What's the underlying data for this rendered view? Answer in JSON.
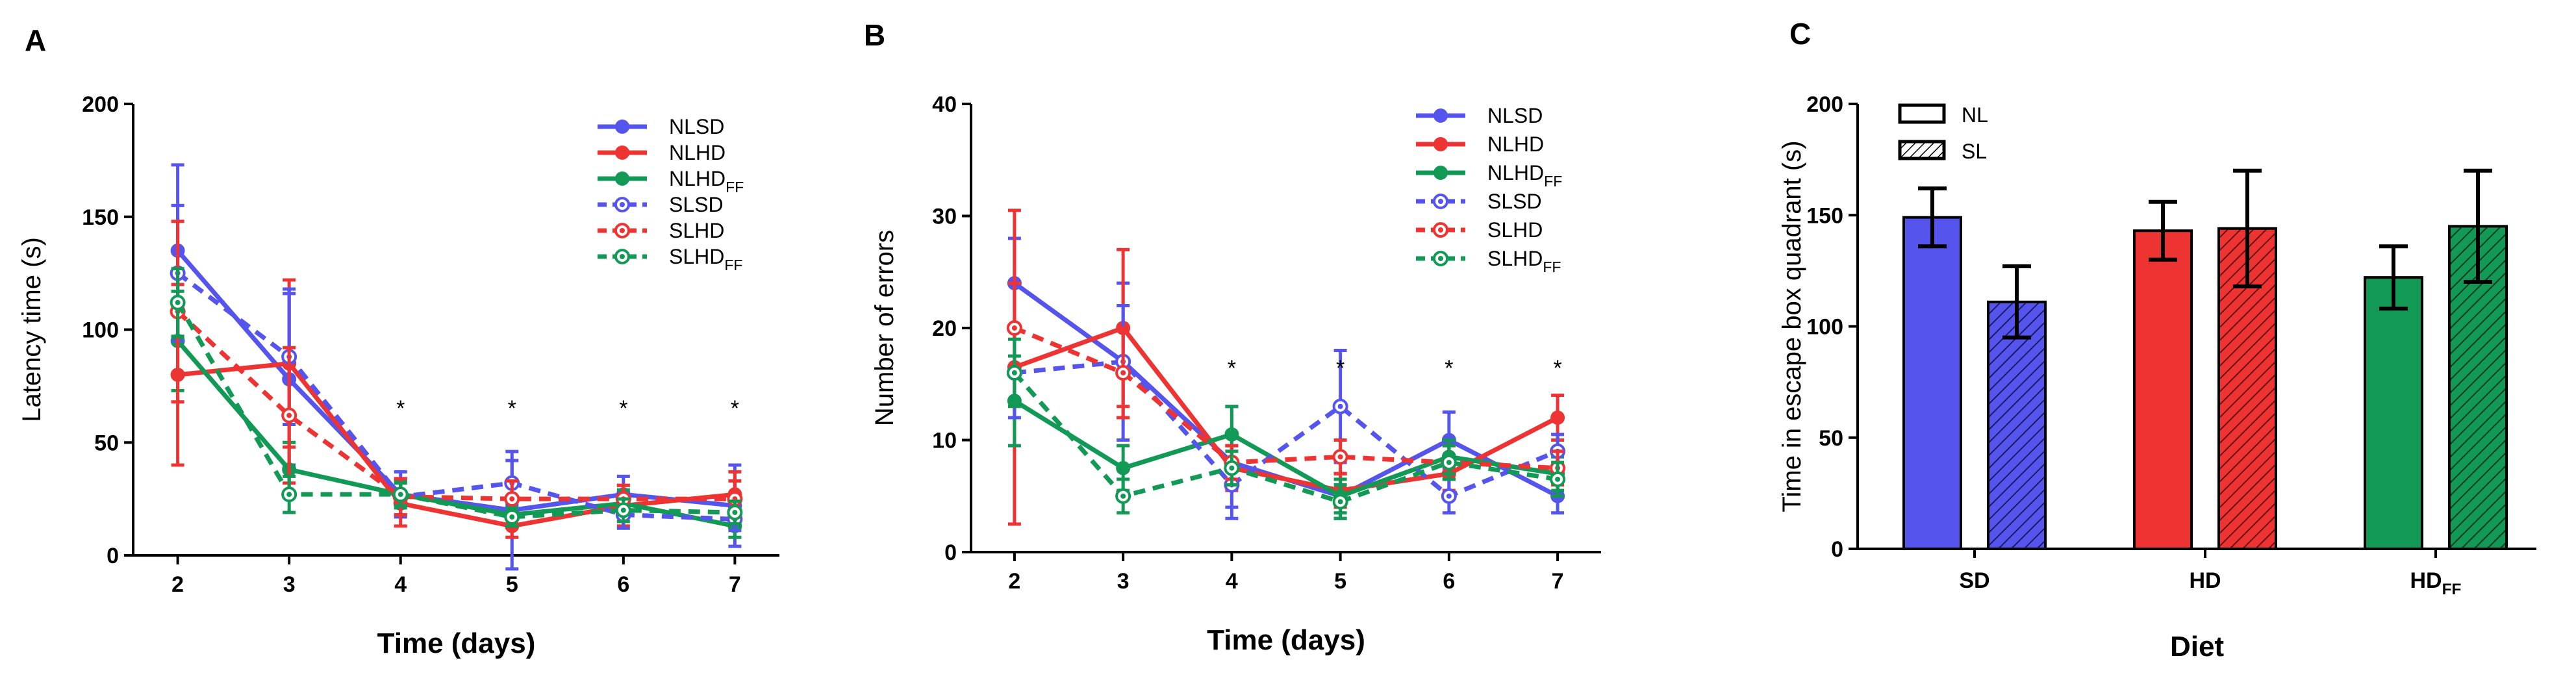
{
  "colors": {
    "blue": "#5555ee",
    "red": "#ee3333",
    "green": "#119955",
    "black": "#000000"
  },
  "chart_data": [
    {
      "panel": "A",
      "type": "line",
      "title": "",
      "xlabel": "Time (days)",
      "ylabel": "Latency time (s)",
      "x": [
        2,
        3,
        4,
        5,
        6,
        7
      ],
      "xlim": [
        1.6,
        7.4
      ],
      "ylim": [
        0,
        200
      ],
      "yticks": [
        0,
        50,
        100,
        150,
        200
      ],
      "legend_position": "top-right",
      "significance_x": [
        4,
        5,
        6,
        7
      ],
      "significance_mark": "*",
      "series": [
        {
          "name": "NLSD",
          "base": "NLSD",
          "sub": "",
          "color": "blue",
          "dashed": false,
          "values": [
            135,
            78,
            27,
            20,
            27,
            22
          ],
          "err": [
            38,
            38,
            10,
            26,
            8,
            18
          ]
        },
        {
          "name": "NLHD",
          "base": "NLHD",
          "sub": "",
          "color": "red",
          "dashed": false,
          "values": [
            80,
            85,
            23,
            13,
            22,
            27
          ],
          "err": [
            40,
            37,
            10,
            5,
            9,
            10
          ]
        },
        {
          "name": "NLHD_FF",
          "base": "NLHD",
          "sub": "FF",
          "color": "green",
          "dashed": false,
          "values": [
            95,
            38,
            27,
            18,
            23,
            13
          ],
          "err": [
            22,
            12,
            6,
            5,
            6,
            5
          ]
        },
        {
          "name": "SLSD",
          "base": "SLSD",
          "sub": "",
          "color": "blue",
          "dashed": true,
          "values": [
            125,
            88,
            26,
            32,
            18,
            16
          ],
          "err": [
            30,
            30,
            8,
            10,
            6,
            5
          ]
        },
        {
          "name": "SLHD",
          "base": "SLHD",
          "sub": "",
          "color": "red",
          "dashed": true,
          "values": [
            108,
            62,
            26,
            25,
            25,
            25
          ],
          "err": [
            40,
            30,
            8,
            8,
            6,
            8
          ]
        },
        {
          "name": "SLHD_FF",
          "base": "SLHD",
          "sub": "FF",
          "color": "green",
          "dashed": true,
          "values": [
            112,
            27,
            27,
            17,
            20,
            19
          ],
          "err": [
            15,
            8,
            5,
            4,
            5,
            5
          ]
        }
      ]
    },
    {
      "panel": "B",
      "type": "line",
      "title": "",
      "xlabel": "Time (days)",
      "ylabel": "Number of errors",
      "x": [
        2,
        3,
        4,
        5,
        6,
        7
      ],
      "xlim": [
        1.6,
        7.4
      ],
      "ylim": [
        0,
        40
      ],
      "yticks": [
        0,
        10,
        20,
        30,
        40
      ],
      "legend_position": "top-right",
      "significance_x": [
        4,
        5,
        6,
        7
      ],
      "significance_mark": "*",
      "series": [
        {
          "name": "NLSD",
          "base": "NLSD",
          "sub": "",
          "color": "blue",
          "dashed": false,
          "values": [
            24,
            17,
            8,
            5,
            10,
            5
          ],
          "err": [
            4,
            7,
            5,
            2,
            2.5,
            1.5
          ]
        },
        {
          "name": "NLHD",
          "base": "NLHD",
          "sub": "",
          "color": "red",
          "dashed": false,
          "values": [
            16.5,
            20,
            7.5,
            5.5,
            7,
            12
          ],
          "err": [
            14,
            7,
            2,
            1.5,
            1.5,
            2
          ]
        },
        {
          "name": "NLHD_FF",
          "base": "NLHD",
          "sub": "FF",
          "color": "green",
          "dashed": false,
          "values": [
            13.5,
            7.5,
            10.5,
            5,
            8.5,
            7
          ],
          "err": [
            4,
            2,
            2.5,
            1.5,
            1.5,
            1.5
          ]
        },
        {
          "name": "SLSD",
          "base": "SLSD",
          "sub": "",
          "color": "blue",
          "dashed": true,
          "values": [
            16,
            17,
            6,
            13,
            5,
            9
          ],
          "err": [
            4,
            5,
            2,
            5,
            1.5,
            1.5
          ]
        },
        {
          "name": "SLHD",
          "base": "SLHD",
          "sub": "",
          "color": "red",
          "dashed": true,
          "values": [
            20,
            16,
            8,
            8.5,
            8,
            7.5
          ],
          "err": [
            4,
            4,
            1.5,
            1.5,
            1.5,
            1.5
          ]
        },
        {
          "name": "SLHD_FF",
          "base": "SLHD",
          "sub": "FF",
          "color": "green",
          "dashed": true,
          "values": [
            16,
            5,
            7.5,
            4.5,
            8,
            6.5
          ],
          "err": [
            3,
            1.5,
            1.5,
            1.5,
            1.5,
            1.5
          ]
        }
      ]
    },
    {
      "panel": "C",
      "type": "bar",
      "title": "",
      "xlabel": "Diet",
      "ylabel": "Time in escape box quadrant  (s)",
      "ylim": [
        0,
        200
      ],
      "yticks": [
        0,
        50,
        100,
        150,
        200
      ],
      "legend_position": "top-left",
      "categories": [
        {
          "base": "SD",
          "sub": "",
          "color": "blue"
        },
        {
          "base": "HD",
          "sub": "",
          "color": "red"
        },
        {
          "base": "HD",
          "sub": "FF",
          "color": "green"
        }
      ],
      "series": [
        {
          "name": "NL",
          "pattern": "solid",
          "values": [
            149,
            143,
            122
          ],
          "err": [
            13,
            13,
            14
          ]
        },
        {
          "name": "SL",
          "pattern": "hatched",
          "values": [
            111,
            144,
            145
          ],
          "err": [
            16,
            26,
            25
          ]
        }
      ]
    }
  ]
}
